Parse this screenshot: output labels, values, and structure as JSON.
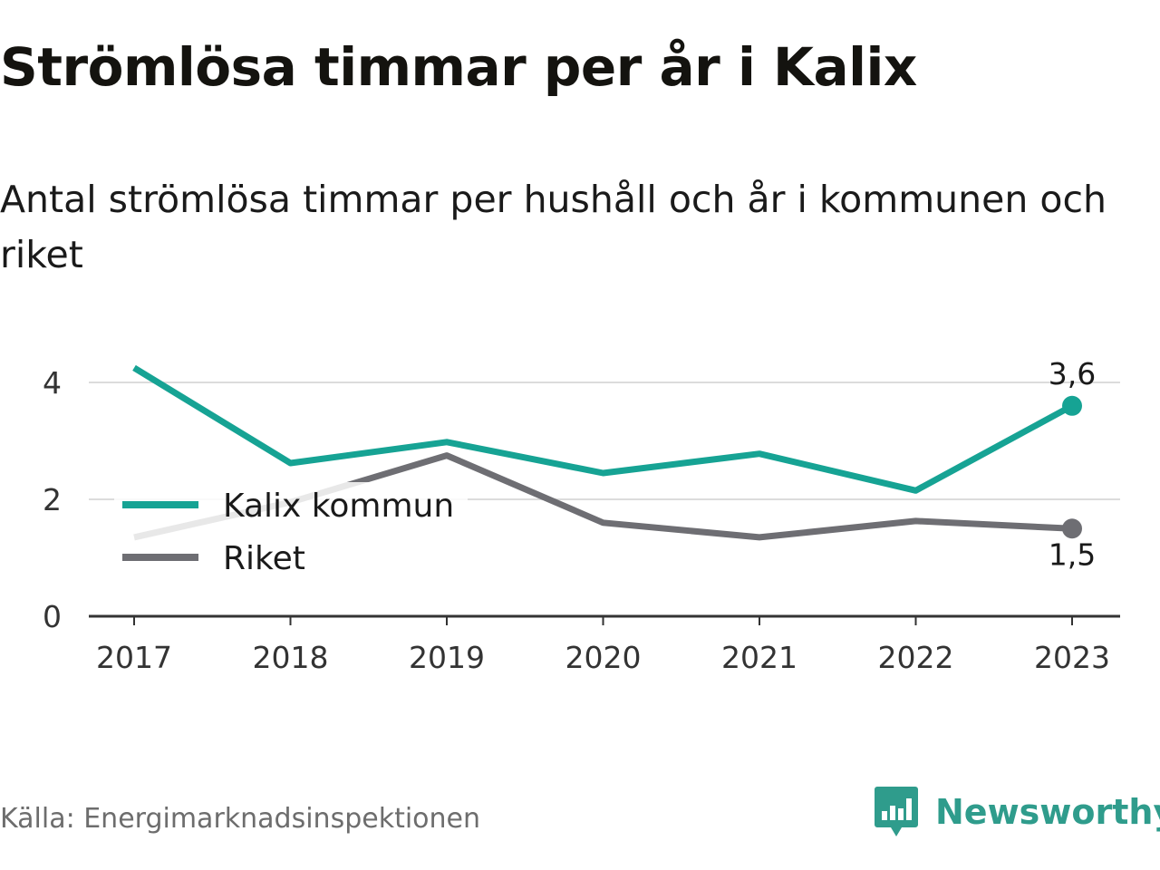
{
  "title": "Strömlösa timmar per år i Kalix",
  "subtitle": "Antal strömlösa timmar per hushåll och år i kommunen och riket",
  "source": "Källa: Energimarknadsinspektionen",
  "brand": {
    "name": "Newsworthy",
    "icon": "newsworthy-logo-icon",
    "color": "#2f9c8c"
  },
  "colors": {
    "kalix": "#16a394",
    "riket": "#6e6e73",
    "grid": "#dcdcdc",
    "axis": "#333333"
  },
  "chart_data": {
    "type": "line",
    "x": [
      "2017",
      "2018",
      "2019",
      "2020",
      "2021",
      "2022",
      "2023"
    ],
    "ylim": [
      0,
      4.6
    ],
    "yticks": [
      0,
      2,
      4
    ],
    "grid": true,
    "legend_position": "center-left",
    "series": [
      {
        "name": "Kalix kommun",
        "color": "#16a394",
        "values": [
          4.25,
          2.62,
          2.98,
          2.45,
          2.78,
          2.15,
          3.6
        ],
        "end_label": "3,6"
      },
      {
        "name": "Riket",
        "color": "#6e6e73",
        "values": [
          1.35,
          1.95,
          2.75,
          1.6,
          1.35,
          1.63,
          1.5
        ],
        "end_label": "1,5"
      }
    ]
  }
}
